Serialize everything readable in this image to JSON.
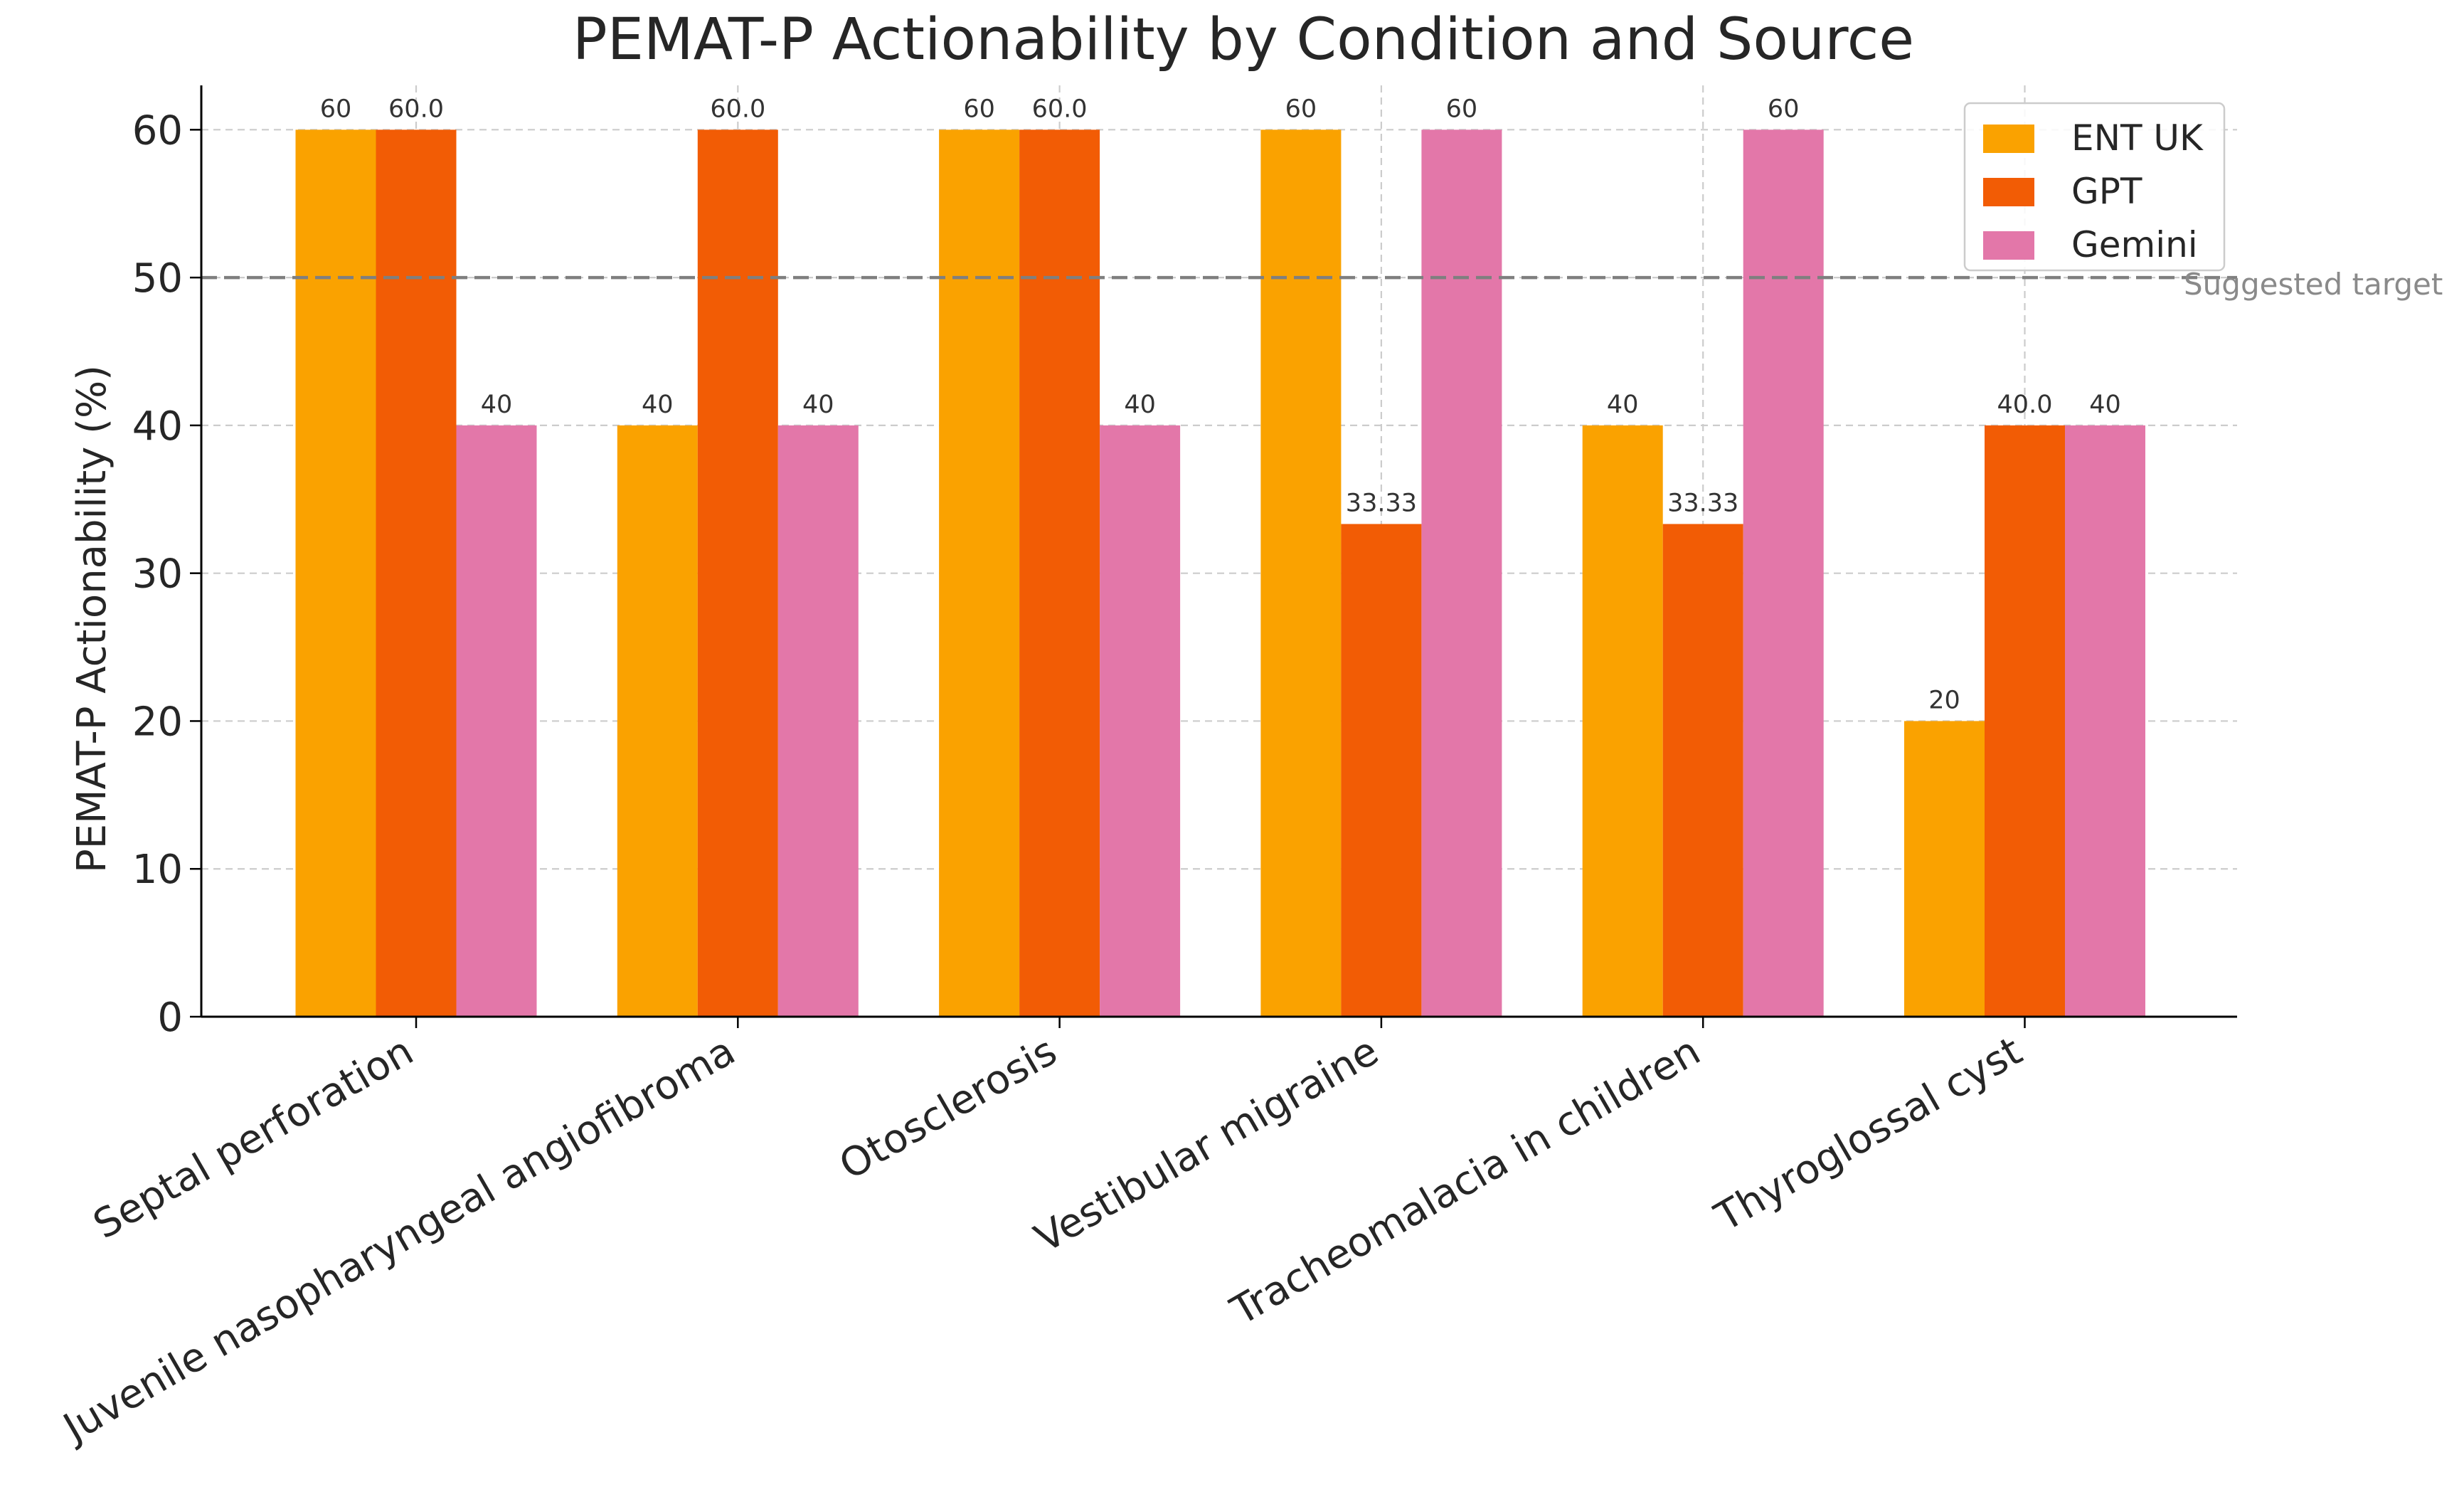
{
  "chart_data": {
    "type": "bar",
    "title": "PEMAT-P Actionability by Condition and Source",
    "xlabel": "",
    "ylabel": "PEMAT-P Actionability (%)",
    "ylim": [
      0,
      63
    ],
    "yticks": [
      0,
      10,
      20,
      30,
      40,
      50,
      60
    ],
    "grid": true,
    "legend_position": "upper right",
    "categories": [
      "Septal perforation",
      "Juvenile nasopharyngeal angiofibroma",
      "Otosclerosis",
      "Vestibular migraine",
      "Tracheomalacia in children",
      "Thyroglossal cyst"
    ],
    "series": [
      {
        "name": "ENT UK",
        "color": "#FAA200",
        "values": [
          60,
          40,
          60,
          60,
          40,
          20
        ],
        "labels": [
          "60",
          "40",
          "60",
          "60",
          "40",
          "20"
        ]
      },
      {
        "name": "GPT",
        "color": "#F25C05",
        "values": [
          60,
          60,
          60,
          33.33,
          33.33,
          40
        ],
        "labels": [
          "60.0",
          "60.0",
          "60.0",
          "33.33",
          "33.33",
          "40.0"
        ]
      },
      {
        "name": "Gemini",
        "color": "#E377A9",
        "values": [
          40,
          40,
          40,
          60,
          60,
          40
        ],
        "labels": [
          "40",
          "40",
          "40",
          "60",
          "60",
          "40"
        ]
      }
    ],
    "reference_line": {
      "y": 50,
      "label": "Suggested target",
      "color": "#7f7f7f"
    }
  }
}
